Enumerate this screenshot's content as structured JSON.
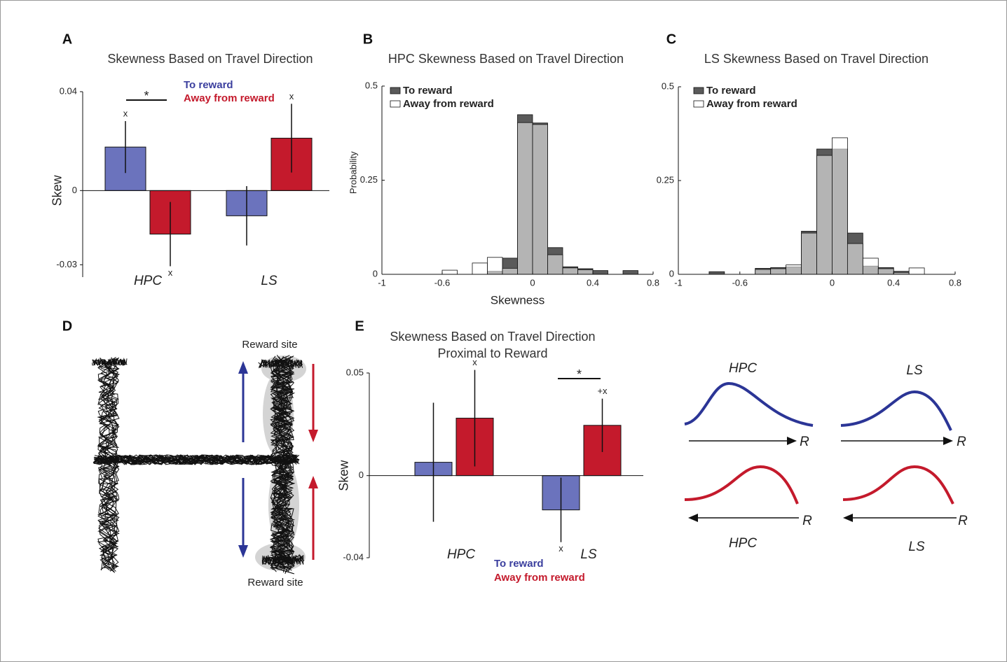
{
  "panel_labels": [
    "A",
    "B",
    "C",
    "D",
    "E"
  ],
  "maze": {
    "reward_site_top": "Reward site",
    "reward_site_bottom": "Reward site"
  },
  "schematic": {
    "top_labels": [
      "HPC",
      "LS"
    ],
    "bottom_labels": [
      "HPC",
      "LS"
    ],
    "arrow_label": "R",
    "colors": [
      "#2b3596",
      "#c41a2c"
    ]
  },
  "chart_data": [
    {
      "type": "bar",
      "title": "Skewness Based on Travel Direction",
      "y_label": "Skew",
      "categories": [
        "HPC",
        "LS"
      ],
      "series": [
        {
          "name": "To reward",
          "color": "#6b73bd",
          "values": [
            0.0176,
            -0.0102
          ],
          "errors": [
            0.0105,
            0.012
          ],
          "markers": [
            "x",
            null
          ]
        },
        {
          "name": "Away from reward",
          "color": "#c41a2c",
          "values": [
            -0.0176,
            0.0212
          ],
          "errors": [
            0.013,
            0.0139
          ],
          "markers": [
            "x",
            "x"
          ]
        }
      ],
      "legend_text_colors": [
        "#3b3f9e",
        "#c41a2c"
      ],
      "ylim": [
        -0.035,
        0.04
      ],
      "yticks": [
        0.04,
        0,
        -0.03
      ],
      "significance": "*"
    },
    {
      "type": "histogram",
      "title": "HPC Skewness Based on Travel Direction",
      "x_label": "Skewness",
      "y_label": "Probability",
      "bins": [
        -1,
        -0.9,
        -0.8,
        -0.7,
        -0.6,
        -0.5,
        -0.4,
        -0.3,
        -0.2,
        -0.1,
        0,
        0.1,
        0.2,
        0.3,
        0.4,
        0.5,
        0.6,
        0.7,
        0.8
      ],
      "series": [
        {
          "name": "To reward",
          "color": "#5a5a5a",
          "values": [
            0,
            0,
            0,
            0,
            0,
            0,
            0,
            0.008,
            0.043,
            0.424,
            0.402,
            0.071,
            0.02,
            0.015,
            0.01,
            0,
            0.01,
            0
          ]
        },
        {
          "name": "Away from reward",
          "color": "#ffffff",
          "values": [
            0,
            0,
            0,
            0,
            0.011,
            0,
            0.03,
            0.045,
            0.016,
            0.403,
            0.398,
            0.052,
            0.017,
            0.012,
            0,
            0,
            0,
            0
          ]
        }
      ],
      "xlim": [
        -1,
        0.8
      ],
      "xticks": [
        -1,
        -0.6,
        0,
        0.4,
        0.8
      ],
      "ylim": [
        0,
        0.5
      ],
      "yticks": [
        0,
        0.25,
        0.5
      ]
    },
    {
      "type": "histogram",
      "title": "LS Skewness Based on Travel Direction",
      "bins": [
        -1,
        -0.9,
        -0.8,
        -0.7,
        -0.6,
        -0.5,
        -0.4,
        -0.3,
        -0.2,
        -0.1,
        0,
        0.1,
        0.2,
        0.3,
        0.4,
        0.5,
        0.6,
        0.7,
        0.8
      ],
      "series": [
        {
          "name": "To reward",
          "color": "#5a5a5a",
          "values": [
            0,
            0,
            0.007,
            0,
            0,
            0.016,
            0.018,
            0.02,
            0.115,
            0.334,
            0.334,
            0.11,
            0.022,
            0.018,
            0.008,
            0,
            0,
            0
          ]
        },
        {
          "name": "Away from reward",
          "color": "#ffffff",
          "values": [
            0,
            0,
            0,
            0,
            0,
            0.013,
            0.015,
            0.025,
            0.11,
            0.317,
            0.364,
            0.082,
            0.043,
            0.015,
            0.005,
            0.017,
            0,
            0
          ]
        }
      ],
      "xlim": [
        -1,
        0.8
      ],
      "xticks": [
        -1,
        -0.6,
        0,
        0.4,
        0.8
      ],
      "ylim": [
        0,
        0.5
      ],
      "yticks": [
        0,
        0.25,
        0.5
      ]
    },
    {
      "type": "bar",
      "title": "Skewness Based on Travel Direction",
      "subtitle": "Proximal to Reward",
      "y_label": "Skew",
      "categories": [
        "HPC",
        "LS"
      ],
      "series": [
        {
          "name": "To reward",
          "color": "#6b73bd",
          "values": [
            0.0065,
            -0.0167
          ],
          "errors": [
            0.029,
            0.0157
          ],
          "markers": [
            null,
            "x"
          ]
        },
        {
          "name": "Away from reward",
          "color": "#c41a2c",
          "values": [
            0.028,
            0.0245
          ],
          "errors": [
            0.0235,
            0.013
          ],
          "markers": [
            "x",
            "+x"
          ]
        }
      ],
      "legend_text_colors": [
        "#3b3f9e",
        "#c41a2c"
      ],
      "ylim": [
        -0.04,
        0.05
      ],
      "yticks": [
        0.05,
        0,
        -0.04
      ],
      "significance": "*"
    }
  ]
}
